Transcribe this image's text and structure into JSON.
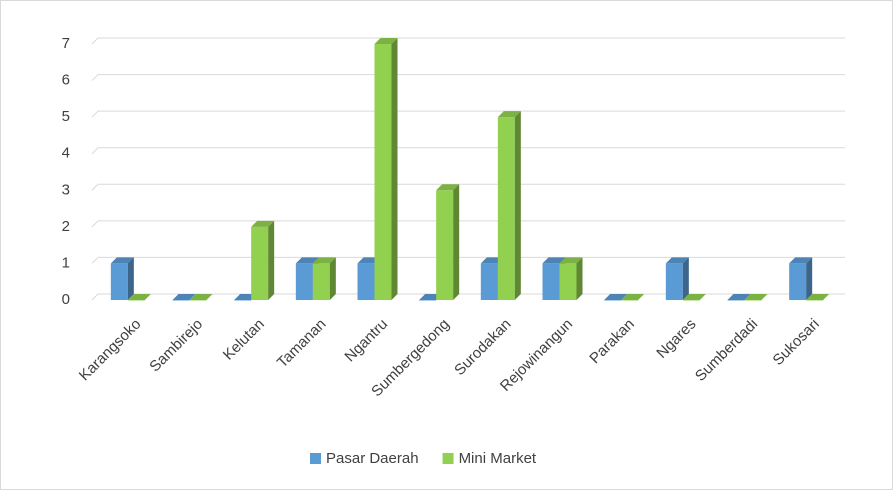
{
  "chart_data": {
    "type": "bar3d",
    "categories": [
      "Karangsoko",
      "Sambirejo",
      "Kelutan",
      "Tamanan",
      "Ngantru",
      "Sumbergedong",
      "Surodakan",
      "Rejowinangun",
      "Parakan",
      "Ngares",
      "Sumberdadi",
      "Sukosari"
    ],
    "series": [
      {
        "name": "Pasar Daerah",
        "color": "#5b9bd5",
        "values": [
          1,
          0,
          0,
          1,
          1,
          0,
          1,
          1,
          0,
          1,
          0,
          1
        ]
      },
      {
        "name": "Mini Market",
        "color": "#92d050",
        "values": [
          0,
          0,
          2,
          1,
          7,
          3,
          5,
          1,
          0,
          0,
          0,
          0
        ]
      }
    ],
    "ylim": [
      0,
      7
    ],
    "yticks": [
      0,
      1,
      2,
      3,
      4,
      5,
      6,
      7
    ],
    "grid": true,
    "legend": "bottom"
  }
}
